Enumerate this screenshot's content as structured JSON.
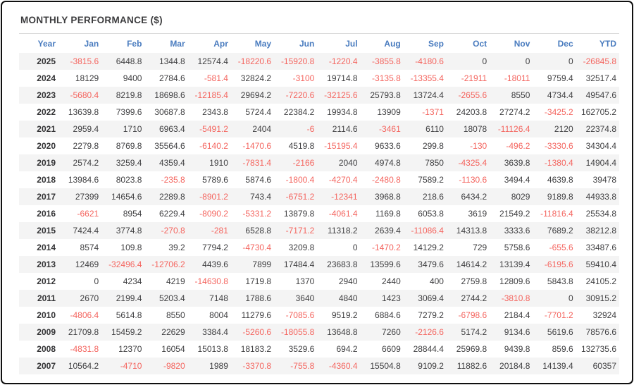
{
  "page": {
    "title": "MONTHLY PERFORMANCE ($)"
  },
  "colors": {
    "panel_border": "#101010",
    "title_text": "#3d3d3f",
    "header_text": "#4a7cbf",
    "positive_value": "#3f3f41",
    "negative_value": "#f4655f",
    "year_text": "#333335",
    "row_stripe": "#f4f4f4",
    "divider": "#dcdcdc"
  },
  "chart_data": {
    "type": "table",
    "title": "MONTHLY PERFORMANCE ($)",
    "columns": [
      "Year",
      "Jan",
      "Feb",
      "Mar",
      "Apr",
      "May",
      "Jun",
      "Jul",
      "Aug",
      "Sep",
      "Oct",
      "Nov",
      "Dec",
      "YTD"
    ],
    "rows": [
      {
        "year": "2025",
        "values": [
          "-3815.6",
          "6448.8",
          "1344.8",
          "12574.4",
          "-18220.6",
          "-15920.8",
          "-1220.4",
          "-3855.8",
          "-4180.6",
          "0",
          "0",
          "0",
          "-26845.8"
        ]
      },
      {
        "year": "2024",
        "values": [
          "18129",
          "9400",
          "2784.6",
          "-581.4",
          "32824.2",
          "-3100",
          "19714.8",
          "-3135.8",
          "-13355.4",
          "-21911",
          "-18011",
          "9759.4",
          "32517.4"
        ]
      },
      {
        "year": "2023",
        "values": [
          "-5680.4",
          "8219.8",
          "18698.6",
          "-12185.4",
          "29694.2",
          "-7220.6",
          "-32125.6",
          "25793.8",
          "13724.4",
          "-2655.6",
          "8550",
          "4734.4",
          "49547.6"
        ]
      },
      {
        "year": "2022",
        "values": [
          "13639.8",
          "7399.6",
          "30687.8",
          "2343.8",
          "5724.4",
          "22384.2",
          "19934.8",
          "13909",
          "-1371",
          "24203.8",
          "27274.2",
          "-3425.2",
          "162705.2"
        ]
      },
      {
        "year": "2021",
        "values": [
          "2959.4",
          "1710",
          "6963.4",
          "-5491.2",
          "2404",
          "-6",
          "2114.6",
          "-3461",
          "6110",
          "18078",
          "-11126.4",
          "2120",
          "22374.8"
        ]
      },
      {
        "year": "2020",
        "values": [
          "2279.8",
          "8769.8",
          "35564.6",
          "-6140.2",
          "-1470.6",
          "4519.8",
          "-15195.4",
          "9633.6",
          "299.8",
          "-130",
          "-496.2",
          "-3330.6",
          "34304.4"
        ]
      },
      {
        "year": "2019",
        "values": [
          "2574.2",
          "3259.4",
          "4359.4",
          "1910",
          "-7831.4",
          "-2166",
          "2040",
          "4974.8",
          "7850",
          "-4325.4",
          "3639.8",
          "-1380.4",
          "14904.4"
        ]
      },
      {
        "year": "2018",
        "values": [
          "13984.6",
          "8023.8",
          "-235.8",
          "5789.6",
          "5874.6",
          "-1800.4",
          "-4270.4",
          "-2480.8",
          "7589.2",
          "-1130.6",
          "3494.4",
          "4639.8",
          "39478"
        ]
      },
      {
        "year": "2017",
        "values": [
          "27399",
          "14654.6",
          "2289.8",
          "-8901.2",
          "743.4",
          "-6751.2",
          "-12341",
          "3968.8",
          "218.6",
          "6434.2",
          "8029",
          "9189.8",
          "44933.8"
        ]
      },
      {
        "year": "2016",
        "values": [
          "-6621",
          "8954",
          "6229.4",
          "-8090.2",
          "-5331.2",
          "13879.8",
          "-4061.4",
          "1169.8",
          "6053.8",
          "3619",
          "21549.2",
          "-11816.4",
          "25534.8"
        ]
      },
      {
        "year": "2015",
        "values": [
          "7424.4",
          "3774.8",
          "-270.8",
          "-281",
          "6528.8",
          "-7171.2",
          "11318.2",
          "2639.4",
          "-11086.4",
          "14313.8",
          "3333.6",
          "7689.2",
          "38212.8"
        ]
      },
      {
        "year": "2014",
        "values": [
          "8574",
          "109.8",
          "39.2",
          "7794.2",
          "-4730.4",
          "3209.8",
          "0",
          "-1470.2",
          "14129.2",
          "729",
          "5758.6",
          "-655.6",
          "33487.6"
        ]
      },
      {
        "year": "2013",
        "values": [
          "12469",
          "-32496.4",
          "-12706.2",
          "4439.6",
          "7899",
          "17484.4",
          "23683.8",
          "13599.6",
          "3479.6",
          "14614.2",
          "13139.4",
          "-6195.6",
          "59410.4"
        ]
      },
      {
        "year": "2012",
        "values": [
          "0",
          "4234",
          "4219",
          "-14630.8",
          "1719.8",
          "1370",
          "2940",
          "2440",
          "400",
          "2759.8",
          "12809.6",
          "5843.8",
          "24105.2"
        ]
      },
      {
        "year": "2011",
        "values": [
          "2670",
          "2199.4",
          "5203.4",
          "7148",
          "1788.6",
          "3640",
          "4840",
          "1423",
          "3069.4",
          "2744.2",
          "-3810.8",
          "0",
          "30915.2"
        ]
      },
      {
        "year": "2010",
        "values": [
          "-4806.4",
          "5614.8",
          "8550",
          "8004",
          "11279.6",
          "-7085.6",
          "9519.2",
          "6884.6",
          "7279.2",
          "-6798.6",
          "2184.4",
          "-7701.2",
          "32924"
        ]
      },
      {
        "year": "2009",
        "values": [
          "21709.8",
          "15459.2",
          "22629",
          "3384.4",
          "-5260.6",
          "-18055.8",
          "13648.8",
          "7260",
          "-2126.6",
          "5174.2",
          "9134.6",
          "5619.6",
          "78576.6"
        ]
      },
      {
        "year": "2008",
        "values": [
          "-4831.8",
          "12370",
          "16054",
          "15013.8",
          "18183.2",
          "3529.6",
          "694.2",
          "6609",
          "28844.4",
          "25969.8",
          "9439.8",
          "859.6",
          "132735.6"
        ]
      },
      {
        "year": "2007",
        "values": [
          "10564.2",
          "-4710",
          "-9820",
          "1989",
          "-3370.8",
          "-755.8",
          "-4360.4",
          "15504.8",
          "9109.2",
          "11882.6",
          "20184.8",
          "14139.4",
          "60357"
        ]
      }
    ]
  }
}
